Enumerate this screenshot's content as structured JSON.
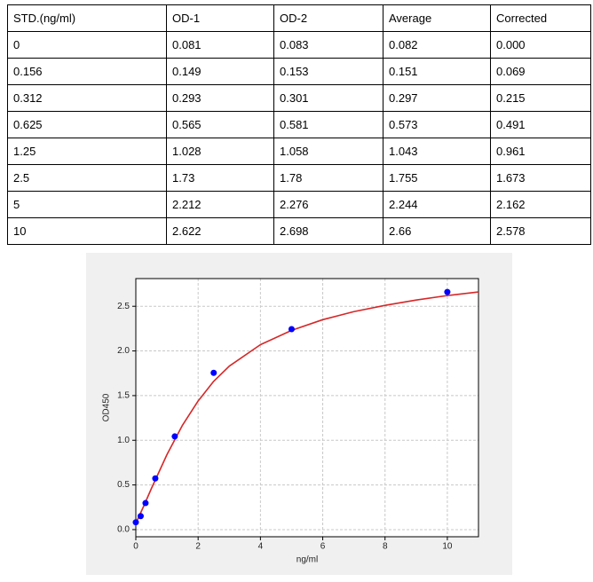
{
  "table": {
    "header": [
      "STD.(ng/ml)",
      "OD-1",
      "OD-2",
      "Average",
      "Corrected"
    ],
    "rows": [
      [
        "0",
        "0.081",
        "0.083",
        "0.082",
        "0.000"
      ],
      [
        "0.156",
        "0.149",
        "0.153",
        "0.151",
        "0.069"
      ],
      [
        "0.312",
        "0.293",
        "0.301",
        "0.297",
        "0.215"
      ],
      [
        "0.625",
        "0.565",
        "0.581",
        "0.573",
        "0.491"
      ],
      [
        "1.25",
        "1.028",
        "1.058",
        "1.043",
        "0.961"
      ],
      [
        "2.5",
        "1.73",
        "1.78",
        "1.755",
        "1.673"
      ],
      [
        "5",
        "2.212",
        "2.276",
        "2.244",
        "2.162"
      ],
      [
        "10",
        "2.622",
        "2.698",
        "2.66",
        "2.578"
      ]
    ]
  },
  "chart_data": {
    "type": "scatter",
    "xlabel": "ng/ml",
    "ylabel": "OD450",
    "xlim": [
      0,
      11
    ],
    "ylim": [
      -0.08,
      2.81
    ],
    "xticks": [
      0,
      2,
      4,
      6,
      8,
      10
    ],
    "yticks": [
      {
        "value": 0,
        "label": "0.0"
      },
      {
        "value": 0.5,
        "label": "0.5"
      },
      {
        "value": 1,
        "label": "1.0"
      },
      {
        "value": 1.5,
        "label": "1.5"
      },
      {
        "value": 2,
        "label": "2.0"
      },
      {
        "value": 2.5,
        "label": "2.5"
      }
    ],
    "grid": true,
    "series": [
      {
        "type": "line",
        "color": "#d62728",
        "x": [
          0,
          0.25,
          0.5,
          0.75,
          1,
          1.5,
          2,
          2.5,
          3,
          4,
          5,
          6,
          7,
          8,
          9,
          10,
          11
        ],
        "values": [
          0.07,
          0.26,
          0.46,
          0.65,
          0.84,
          1.17,
          1.44,
          1.66,
          1.83,
          2.07,
          2.23,
          2.35,
          2.44,
          2.51,
          2.57,
          2.62,
          2.66
        ]
      },
      {
        "type": "scatter",
        "color": "#0000ff",
        "x": [
          0,
          0.156,
          0.312,
          0.625,
          1.25,
          2.5,
          5,
          10
        ],
        "values": [
          0.082,
          0.151,
          0.297,
          0.573,
          1.043,
          1.755,
          2.244,
          2.66
        ]
      }
    ]
  }
}
